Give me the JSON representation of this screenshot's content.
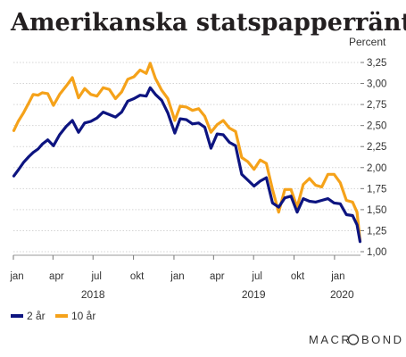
{
  "chart_data": {
    "type": "line",
    "title": "Amerikanska statspapperräntor",
    "unit_label": "Percent",
    "ylim": [
      1.0,
      3.25
    ],
    "y_ticks": [
      "3,25",
      "3,00",
      "2,75",
      "2,50",
      "2,25",
      "2,00",
      "1,75",
      "1,50",
      "1,25",
      "1,00"
    ],
    "x_ticks": [
      "jan",
      "apr",
      "jul",
      "okt",
      "jan",
      "apr",
      "jul",
      "okt",
      "jan"
    ],
    "x_years": [
      "2018",
      "2019",
      "2020"
    ],
    "xlim": [
      "2018-01-01",
      "2020-02-29"
    ],
    "grid": true,
    "legend_position": "bottom-left",
    "series": [
      {
        "name": "2 år",
        "color": "#0d1480",
        "x": [
          "2018-01-02",
          "2018-01-12",
          "2018-01-24",
          "2018-02-05",
          "2018-02-15",
          "2018-02-26",
          "2018-03-08",
          "2018-03-20",
          "2018-04-02",
          "2018-04-16",
          "2018-05-01",
          "2018-05-15",
          "2018-05-29",
          "2018-06-12",
          "2018-06-26",
          "2018-07-10",
          "2018-07-24",
          "2018-08-07",
          "2018-08-21",
          "2018-09-04",
          "2018-09-18",
          "2018-10-02",
          "2018-10-16",
          "2018-10-30",
          "2018-11-08",
          "2018-11-20",
          "2018-12-04",
          "2018-12-18",
          "2019-01-03",
          "2019-01-15",
          "2019-01-29",
          "2019-02-12",
          "2019-02-26",
          "2019-03-12",
          "2019-03-26",
          "2019-04-09",
          "2019-04-23",
          "2019-05-07",
          "2019-05-21",
          "2019-06-04",
          "2019-06-18",
          "2019-07-02",
          "2019-07-16",
          "2019-07-30",
          "2019-08-13",
          "2019-08-27",
          "2019-09-10",
          "2019-09-24",
          "2019-10-08",
          "2019-10-22",
          "2019-11-05",
          "2019-11-19",
          "2019-12-03",
          "2019-12-17",
          "2019-12-31",
          "2020-01-14",
          "2020-01-28",
          "2020-02-11",
          "2020-02-21",
          "2020-02-28"
        ],
        "values": [
          1.9,
          1.97,
          2.06,
          2.13,
          2.18,
          2.22,
          2.28,
          2.33,
          2.26,
          2.39,
          2.49,
          2.56,
          2.42,
          2.53,
          2.55,
          2.59,
          2.66,
          2.63,
          2.6,
          2.66,
          2.79,
          2.82,
          2.86,
          2.85,
          2.95,
          2.87,
          2.8,
          2.65,
          2.41,
          2.58,
          2.57,
          2.52,
          2.53,
          2.48,
          2.23,
          2.4,
          2.39,
          2.3,
          2.26,
          1.92,
          1.85,
          1.78,
          1.84,
          1.88,
          1.58,
          1.53,
          1.64,
          1.66,
          1.47,
          1.63,
          1.6,
          1.59,
          1.61,
          1.63,
          1.58,
          1.57,
          1.44,
          1.43,
          1.32,
          1.12
        ]
      },
      {
        "name": "10 år",
        "color": "#f5a21a",
        "x": [
          "2018-01-02",
          "2018-01-12",
          "2018-01-24",
          "2018-02-05",
          "2018-02-15",
          "2018-02-26",
          "2018-03-08",
          "2018-03-20",
          "2018-04-02",
          "2018-04-16",
          "2018-05-01",
          "2018-05-15",
          "2018-05-29",
          "2018-06-12",
          "2018-06-26",
          "2018-07-10",
          "2018-07-24",
          "2018-08-07",
          "2018-08-21",
          "2018-09-04",
          "2018-09-18",
          "2018-10-02",
          "2018-10-16",
          "2018-10-30",
          "2018-11-08",
          "2018-11-20",
          "2018-12-04",
          "2018-12-18",
          "2019-01-03",
          "2019-01-15",
          "2019-01-29",
          "2019-02-12",
          "2019-02-26",
          "2019-03-12",
          "2019-03-26",
          "2019-04-09",
          "2019-04-23",
          "2019-05-07",
          "2019-05-21",
          "2019-06-04",
          "2019-06-18",
          "2019-07-02",
          "2019-07-16",
          "2019-07-30",
          "2019-08-13",
          "2019-08-27",
          "2019-09-10",
          "2019-09-24",
          "2019-10-08",
          "2019-10-22",
          "2019-11-05",
          "2019-11-19",
          "2019-12-03",
          "2019-12-17",
          "2019-12-31",
          "2020-01-14",
          "2020-01-28",
          "2020-02-11",
          "2020-02-21",
          "2020-02-28"
        ],
        "values": [
          2.44,
          2.55,
          2.65,
          2.77,
          2.87,
          2.86,
          2.89,
          2.88,
          2.74,
          2.87,
          2.97,
          3.07,
          2.83,
          2.94,
          2.87,
          2.85,
          2.95,
          2.93,
          2.82,
          2.9,
          3.05,
          3.08,
          3.16,
          3.12,
          3.24,
          3.06,
          2.92,
          2.82,
          2.56,
          2.73,
          2.72,
          2.68,
          2.7,
          2.61,
          2.42,
          2.51,
          2.56,
          2.47,
          2.43,
          2.12,
          2.07,
          1.98,
          2.09,
          2.05,
          1.74,
          1.47,
          1.74,
          1.74,
          1.53,
          1.8,
          1.87,
          1.79,
          1.77,
          1.92,
          1.92,
          1.82,
          1.61,
          1.59,
          1.47,
          1.13
        ]
      }
    ]
  },
  "legend": {
    "items": [
      {
        "label": "2 år",
        "color": "#0d1480"
      },
      {
        "label": "10 år",
        "color": "#f5a21a"
      }
    ]
  },
  "brand": {
    "left": "MACR",
    "right": "BOND",
    "icon": "circle-logo-icon"
  }
}
